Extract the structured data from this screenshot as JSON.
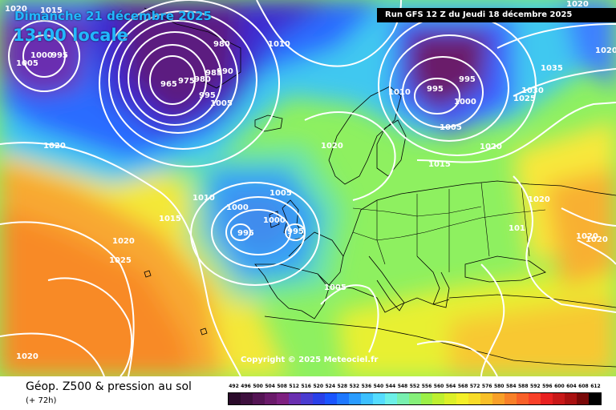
{
  "header": {
    "date": "Dimanche 21 décembre 2025",
    "time": "13:00 locale"
  },
  "run_info": "Run GFS 12 Z du Jeudi 18 décembre 2025",
  "copyright": "Copyright © 2025 Meteociel.fr",
  "legend": {
    "title": "Géop. Z500 & pression au sol",
    "subtitle": "(+ 72h)",
    "scale_labels": [
      "492",
      "496",
      "500",
      "504",
      "508",
      "512",
      "516",
      "520",
      "524",
      "528",
      "532",
      "536",
      "540",
      "544",
      "548",
      "552",
      "556",
      "560",
      "564",
      "568",
      "572",
      "576",
      "580",
      "584",
      "588",
      "592",
      "596",
      "600",
      "604",
      "608",
      "612"
    ],
    "scale_colors": [
      "#2a0a2a",
      "#3d0f3d",
      "#541454",
      "#6a1a6a",
      "#7e2080",
      "#6a2fb0",
      "#4a3cd0",
      "#2a40e8",
      "#1a55ff",
      "#1e78ff",
      "#2a9cff",
      "#3cc0ff",
      "#54dcff",
      "#6cf0e8",
      "#78f0b0",
      "#86f07a",
      "#9cf048",
      "#bef030",
      "#dcf028",
      "#f4f028",
      "#f8dc28",
      "#f8c028",
      "#f8a028",
      "#f88028",
      "#f86028",
      "#f84028",
      "#e82020",
      "#c81818",
      "#a81010",
      "#780808",
      "#000000"
    ]
  },
  "isobar_labels": [
    {
      "id": "1020-nw",
      "text": "1020"
    },
    {
      "id": "1015-nw",
      "text": "1015"
    },
    {
      "id": "1005-nw",
      "text": "1005"
    },
    {
      "id": "1000-nw",
      "text": "1000"
    },
    {
      "id": "995-nw",
      "text": "995"
    },
    {
      "id": "980-n",
      "text": "980"
    },
    {
      "id": "1010-n",
      "text": "1010"
    },
    {
      "id": "965",
      "text": "965"
    },
    {
      "id": "975",
      "text": "975"
    },
    {
      "id": "980-b",
      "text": "980"
    },
    {
      "id": "985",
      "text": "985"
    },
    {
      "id": "990",
      "text": "990"
    },
    {
      "id": "995-b",
      "text": "995"
    },
    {
      "id": "1005-b",
      "text": "1005"
    },
    {
      "id": "1020-top",
      "text": "1020"
    },
    {
      "id": "1020-right",
      "text": "1020"
    },
    {
      "id": "1035",
      "text": "1035"
    },
    {
      "id": "1030",
      "text": "1030"
    },
    {
      "id": "1025-r",
      "text": "1025"
    },
    {
      "id": "1010-ne",
      "text": "1010"
    },
    {
      "id": "995-ne1",
      "text": "995"
    },
    {
      "id": "995-ne2",
      "text": "995"
    },
    {
      "id": "1000-ne",
      "text": "1000"
    },
    {
      "id": "1005-ne",
      "text": "1005"
    },
    {
      "id": "1020-w",
      "text": "1020"
    },
    {
      "id": "1020-mid",
      "text": "1020"
    },
    {
      "id": "1015-e",
      "text": "1015"
    },
    {
      "id": "1020-ne2",
      "text": "1020"
    },
    {
      "id": "1010-w",
      "text": "1010"
    },
    {
      "id": "1015-w",
      "text": "1015"
    },
    {
      "id": "1005-w",
      "text": "1005"
    },
    {
      "id": "1000-w",
      "text": "1000"
    },
    {
      "id": "1000-c",
      "text": "1000"
    },
    {
      "id": "995-w1",
      "text": "995"
    },
    {
      "id": "995-w2",
      "text": "995"
    },
    {
      "id": "1020-sw",
      "text": "1020"
    },
    {
      "id": "1025-sw",
      "text": "1025"
    },
    {
      "id": "1005-s",
      "text": "1005"
    },
    {
      "id": "1020-e",
      "text": "1020"
    },
    {
      "id": "101x-e",
      "text": "101"
    },
    {
      "id": "1020-e2",
      "text": "1020"
    },
    {
      "id": "1020-e3",
      "text": "1020"
    },
    {
      "id": "1020-ssw",
      "text": "1020"
    }
  ]
}
